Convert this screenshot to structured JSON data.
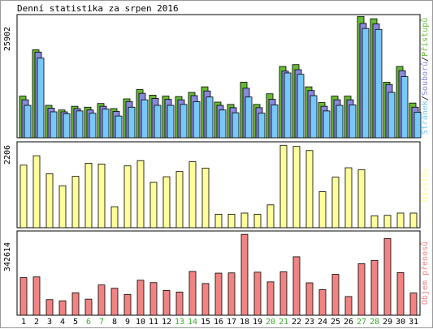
{
  "title": "Denní statistika za srpen 2016",
  "colors": {
    "hits": "#66bb33",
    "files": "#8888dd",
    "pages": "#77c8f8",
    "visits": "#fdfd99",
    "kbytes": "#f28383",
    "weekend": "#3ea82c",
    "text": "#000000"
  },
  "chart_data": [
    {
      "type": "bar",
      "panel": "top",
      "categories": [
        "1",
        "2",
        "3",
        "4",
        "5",
        "6",
        "7",
        "8",
        "9",
        "10",
        "11",
        "12",
        "13",
        "14",
        "15",
        "16",
        "17",
        "18",
        "19",
        "20",
        "21",
        "22",
        "23",
        "24",
        "25",
        "26",
        "27",
        "28",
        "29",
        "30",
        "31"
      ],
      "weekend_days": [
        "6",
        "7",
        "13",
        "14",
        "20",
        "21",
        "27",
        "28"
      ],
      "ymax_label": "25902",
      "legend": [
        "Přístupů",
        "Souborů",
        "Stránek"
      ],
      "legend_separator": "/",
      "ylim": [
        0,
        25902
      ],
      "series": [
        {
          "name": "Přístupů",
          "color": "#66bb33",
          "values": [
            9000,
            19000,
            7000,
            6000,
            6800,
            6600,
            7400,
            6300,
            8400,
            10400,
            9200,
            9000,
            8900,
            9800,
            11000,
            7700,
            7200,
            12000,
            7200,
            9500,
            15400,
            15800,
            11000,
            7600,
            9000,
            9000,
            26200,
            25700,
            12000,
            15400,
            7500
          ]
        },
        {
          "name": "Souborů",
          "color": "#8888dd",
          "values": [
            8200,
            18500,
            6400,
            5600,
            6300,
            6000,
            6800,
            5700,
            7800,
            9600,
            8500,
            8300,
            8200,
            9100,
            10100,
            7000,
            6500,
            10700,
            6500,
            8300,
            14400,
            14700,
            10200,
            6800,
            8200,
            8200,
            24700,
            24600,
            11500,
            14500,
            6600
          ]
        },
        {
          "name": "Stránek",
          "color": "#77c8f8",
          "values": [
            7000,
            17200,
            5600,
            5200,
            5800,
            5300,
            6200,
            4700,
            6600,
            8200,
            7000,
            7000,
            7200,
            7800,
            8800,
            6000,
            5400,
            8800,
            5300,
            7100,
            14000,
            13700,
            9100,
            5800,
            7000,
            7100,
            23600,
            23400,
            9800,
            13200,
            5500
          ]
        }
      ]
    },
    {
      "type": "bar",
      "panel": "middle",
      "categories": [
        "1",
        "2",
        "3",
        "4",
        "5",
        "6",
        "7",
        "8",
        "9",
        "10",
        "11",
        "12",
        "13",
        "14",
        "15",
        "16",
        "17",
        "18",
        "19",
        "20",
        "21",
        "22",
        "23",
        "24",
        "25",
        "26",
        "27",
        "28",
        "29",
        "30",
        "31"
      ],
      "ymax_label": "2206",
      "legend": [
        "Návštěv"
      ],
      "ylim": [
        0,
        2206
      ],
      "series": [
        {
          "name": "Návštěv",
          "color": "#fdfd99",
          "values": [
            1670,
            1920,
            1440,
            1120,
            1370,
            1720,
            1700,
            560,
            1650,
            1790,
            1210,
            1360,
            1500,
            1760,
            1590,
            360,
            360,
            390,
            360,
            610,
            2200,
            2170,
            2060,
            960,
            1350,
            1600,
            1550,
            320,
            330,
            390,
            390
          ]
        }
      ]
    },
    {
      "type": "bar",
      "panel": "bottom",
      "categories": [
        "1",
        "2",
        "3",
        "4",
        "5",
        "6",
        "7",
        "8",
        "9",
        "10",
        "11",
        "12",
        "13",
        "14",
        "15",
        "16",
        "17",
        "18",
        "19",
        "20",
        "21",
        "22",
        "23",
        "24",
        "25",
        "26",
        "27",
        "28",
        "29",
        "30",
        "31"
      ],
      "ymax_label": "342614",
      "legend": [
        "Objem přenosů"
      ],
      "ylim": [
        0,
        342614
      ],
      "series": [
        {
          "name": "Objem přenosů",
          "color": "#f28383",
          "values": [
            159000,
            162000,
            66000,
            61000,
            95000,
            68000,
            128000,
            114000,
            88000,
            148000,
            138000,
            105000,
            98000,
            185000,
            134000,
            178000,
            179000,
            342000,
            182000,
            141000,
            184000,
            247000,
            137000,
            108000,
            173000,
            79000,
            218000,
            232000,
            324000,
            180000,
            94000
          ]
        }
      ]
    }
  ]
}
